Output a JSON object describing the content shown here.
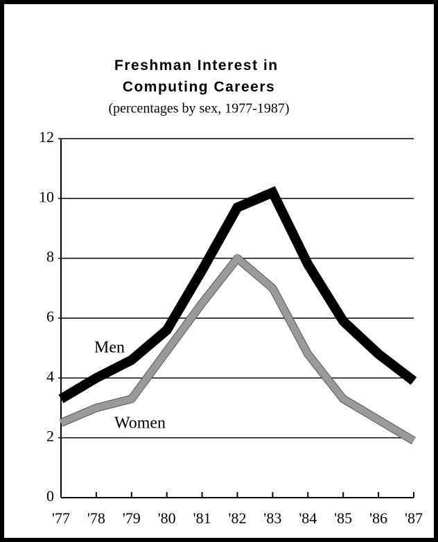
{
  "chart_data": {
    "type": "line",
    "title": "Freshman Interest in Computing Careers",
    "subtitle": "(percentages by sex, 1977-1987)",
    "categories": [
      "'77",
      "'78",
      "'79",
      "'80",
      "'81",
      "'82",
      "'83",
      "'84",
      "'85",
      "'86",
      "'87"
    ],
    "series": [
      {
        "name": "Men",
        "color": "#000000",
        "values": [
          3.3,
          4.0,
          4.6,
          5.6,
          7.6,
          9.7,
          10.2,
          7.8,
          5.9,
          4.8,
          3.9
        ]
      },
      {
        "name": "Women",
        "color": "#9a9a9a",
        "values": [
          2.5,
          3.0,
          3.3,
          4.9,
          6.5,
          8.0,
          7.0,
          4.8,
          3.3,
          2.6,
          1.9
        ]
      }
    ],
    "ylim": [
      0,
      12
    ],
    "yticks": [
      0,
      2,
      4,
      6,
      8,
      10,
      12
    ],
    "grid": true
  }
}
